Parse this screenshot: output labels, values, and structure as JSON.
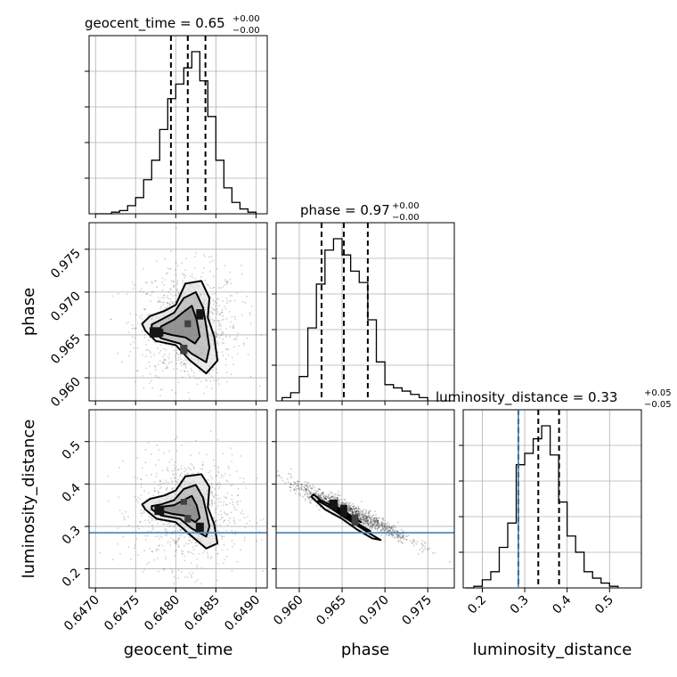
{
  "chart_data": {
    "type": "corner",
    "parameters": [
      "geocent_time",
      "phase",
      "luminosity_distance"
    ],
    "titles": [
      {
        "label": "geocent_time = 0.65",
        "upper": "+0.00",
        "lower": "−0.00"
      },
      {
        "label": "phase = 0.97",
        "upper": "+0.00",
        "lower": "−0.00"
      },
      {
        "label": "luminosity_distance = 0.33",
        "upper": "+0.05",
        "lower": "−0.05"
      }
    ],
    "axis_labels": {
      "x": [
        "geocent_time",
        "phase",
        "luminosity_distance"
      ],
      "y": [
        "phase",
        "luminosity_distance"
      ]
    },
    "ranges": {
      "geocent_time": [
        0.64692,
        0.64914
      ],
      "phase": [
        0.9573,
        0.9781
      ],
      "luminosity_distance": [
        0.155,
        0.575
      ]
    },
    "ticks": {
      "geocent_time": [
        "0.6470",
        "0.6475",
        "0.6480",
        "0.6485",
        "0.6490"
      ],
      "phase": [
        "0.960",
        "0.965",
        "0.970",
        "0.975"
      ],
      "luminosity_distance": [
        "0.2",
        "0.3",
        "0.4",
        "0.5"
      ]
    },
    "quantiles": {
      "geocent_time": [
        0.64794,
        0.64815,
        0.64837
      ],
      "phase": [
        0.9626,
        0.9652,
        0.968
      ],
      "luminosity_distance": [
        0.285,
        0.332,
        0.381
      ]
    },
    "truth": {
      "luminosity_distance": 0.285
    },
    "truth_color": "#4682b4",
    "histograms": {
      "geocent_time": {
        "bin_edges": [
          0.647,
          0.6471,
          0.6472,
          0.6473,
          0.6474,
          0.6475,
          0.6476,
          0.6477,
          0.6478,
          0.6479,
          0.648,
          0.6481,
          0.6482,
          0.6483,
          0.6484,
          0.6485,
          0.6486,
          0.6487,
          0.6488,
          0.6489,
          0.649
        ],
        "counts": [
          0.0,
          0.0,
          0.01,
          0.02,
          0.05,
          0.1,
          0.21,
          0.33,
          0.52,
          0.71,
          0.8,
          0.9,
          1.0,
          0.82,
          0.6,
          0.33,
          0.16,
          0.07,
          0.03,
          0.01
        ]
      },
      "phase": {
        "bin_edges": [
          0.958,
          0.959,
          0.96,
          0.961,
          0.962,
          0.963,
          0.964,
          0.965,
          0.966,
          0.967,
          0.968,
          0.969,
          0.97,
          0.971,
          0.972,
          0.973,
          0.974,
          0.975
        ],
        "counts": [
          0.02,
          0.05,
          0.15,
          0.45,
          0.72,
          0.93,
          1.0,
          0.9,
          0.8,
          0.73,
          0.5,
          0.24,
          0.1,
          0.08,
          0.06,
          0.04,
          0.02
        ]
      },
      "luminosity_distance": {
        "bin_edges": [
          0.16,
          0.18,
          0.2,
          0.22,
          0.24,
          0.26,
          0.28,
          0.3,
          0.32,
          0.34,
          0.36,
          0.38,
          0.4,
          0.42,
          0.44,
          0.46,
          0.48,
          0.5,
          0.52
        ],
        "counts": [
          0.0,
          0.01,
          0.05,
          0.1,
          0.25,
          0.4,
          0.76,
          0.83,
          0.92,
          1.0,
          0.82,
          0.53,
          0.32,
          0.22,
          0.1,
          0.06,
          0.03,
          0.01
        ]
      }
    },
    "density_blobs": {
      "phase_vs_geocent_time": [
        {
          "x": 0.647795,
          "y": 0.96525,
          "w": 0.0001,
          "h": 0.0009
        },
        {
          "x": 0.64815,
          "y": 0.9663,
          "w": 8e-05,
          "h": 0.0008
        },
        {
          "x": 0.6483,
          "y": 0.9674,
          "w": 9e-05,
          "h": 0.0012
        },
        {
          "x": 0.6481,
          "y": 0.9633,
          "w": 9e-05,
          "h": 0.0011
        },
        {
          "x": 0.64775,
          "y": 0.9653,
          "w": 0.00015,
          "h": 0.0012
        }
      ],
      "luminosity_distance_vs_geocent_time": [
        {
          "x": 0.647795,
          "y": 0.338,
          "w": 0.00012,
          "h": 0.022
        },
        {
          "x": 0.64815,
          "y": 0.318,
          "w": 8e-05,
          "h": 0.018
        },
        {
          "x": 0.6483,
          "y": 0.298,
          "w": 0.0001,
          "h": 0.022
        },
        {
          "x": 0.6481,
          "y": 0.358,
          "w": 8e-05,
          "h": 0.014
        }
      ],
      "luminosity_distance_vs_phase": [
        {
          "x": 0.9652,
          "y": 0.337,
          "w": 0.0008,
          "h": 0.028
        },
        {
          "x": 0.9665,
          "y": 0.315,
          "w": 0.0008,
          "h": 0.026
        },
        {
          "x": 0.964,
          "y": 0.352,
          "w": 0.001,
          "h": 0.022
        }
      ]
    },
    "contours": {
      "phase_vs_geocent_time": {
        "outer": [
          [
            0.64762,
            0.9655
          ],
          [
            0.64775,
            0.9643
          ],
          [
            0.648,
            0.9638
          ],
          [
            0.64818,
            0.962
          ],
          [
            0.64838,
            0.9605
          ],
          [
            0.64852,
            0.962
          ],
          [
            0.64848,
            0.9648
          ],
          [
            0.6484,
            0.967
          ],
          [
            0.64842,
            0.9693
          ],
          [
            0.64832,
            0.9713
          ],
          [
            0.64812,
            0.971
          ],
          [
            0.648,
            0.9685
          ],
          [
            0.64786,
            0.9678
          ],
          [
            0.64768,
            0.9672
          ],
          [
            0.64758,
            0.9663
          ]
        ],
        "middle": [
          [
            0.6477,
            0.9655
          ],
          [
            0.64782,
            0.9646
          ],
          [
            0.64805,
            0.964
          ],
          [
            0.6482,
            0.9628
          ],
          [
            0.64838,
            0.9618
          ],
          [
            0.64842,
            0.9635
          ],
          [
            0.64838,
            0.966
          ],
          [
            0.64834,
            0.9682
          ],
          [
            0.64825,
            0.97
          ],
          [
            0.6481,
            0.9693
          ],
          [
            0.64798,
            0.9676
          ],
          [
            0.64782,
            0.9668
          ],
          [
            0.6477,
            0.9662
          ]
        ],
        "inner": [
          [
            0.64778,
            0.9654
          ],
          [
            0.64795,
            0.965
          ],
          [
            0.64812,
            0.9647
          ],
          [
            0.64824,
            0.964
          ],
          [
            0.6483,
            0.9648
          ],
          [
            0.64826,
            0.9668
          ],
          [
            0.6482,
            0.9684
          ],
          [
            0.6481,
            0.9677
          ],
          [
            0.64798,
            0.9668
          ],
          [
            0.64782,
            0.966
          ]
        ]
      },
      "luminosity_distance_vs_geocent_time": {
        "outer": [
          [
            0.64762,
            0.34
          ],
          [
            0.64776,
            0.318
          ],
          [
            0.648,
            0.31
          ],
          [
            0.64818,
            0.28
          ],
          [
            0.64838,
            0.248
          ],
          [
            0.64852,
            0.26
          ],
          [
            0.64848,
            0.305
          ],
          [
            0.6484,
            0.345
          ],
          [
            0.64842,
            0.393
          ],
          [
            0.64832,
            0.423
          ],
          [
            0.64812,
            0.418
          ],
          [
            0.648,
            0.385
          ],
          [
            0.64786,
            0.373
          ],
          [
            0.64768,
            0.365
          ],
          [
            0.64758,
            0.352
          ]
        ],
        "middle": [
          [
            0.6477,
            0.34
          ],
          [
            0.64782,
            0.326
          ],
          [
            0.64805,
            0.318
          ],
          [
            0.6482,
            0.295
          ],
          [
            0.64838,
            0.276
          ],
          [
            0.64842,
            0.3
          ],
          [
            0.64838,
            0.335
          ],
          [
            0.64834,
            0.368
          ],
          [
            0.64825,
            0.398
          ],
          [
            0.6481,
            0.388
          ],
          [
            0.64798,
            0.362
          ],
          [
            0.64782,
            0.352
          ],
          [
            0.6477,
            0.348
          ]
        ],
        "inner": [
          [
            0.64778,
            0.338
          ],
          [
            0.64795,
            0.33
          ],
          [
            0.64812,
            0.325
          ],
          [
            0.64824,
            0.31
          ],
          [
            0.6483,
            0.32
          ],
          [
            0.64826,
            0.35
          ],
          [
            0.6482,
            0.372
          ],
          [
            0.6481,
            0.362
          ],
          [
            0.64798,
            0.35
          ],
          [
            0.64782,
            0.346
          ]
        ]
      },
      "luminosity_distance_vs_phase": {
        "outer": [
          [
            0.9614,
            0.37
          ],
          [
            0.963,
            0.34
          ],
          [
            0.965,
            0.318
          ],
          [
            0.9668,
            0.292
          ],
          [
            0.9685,
            0.272
          ],
          [
            0.9695,
            0.268
          ],
          [
            0.9685,
            0.28
          ],
          [
            0.9668,
            0.302
          ],
          [
            0.965,
            0.325
          ],
          [
            0.9632,
            0.35
          ],
          [
            0.9617,
            0.375
          ]
        ],
        "middle": [
          [
            0.9622,
            0.36
          ],
          [
            0.964,
            0.34
          ],
          [
            0.966,
            0.315
          ],
          [
            0.9676,
            0.292
          ],
          [
            0.9683,
            0.289
          ],
          [
            0.9672,
            0.302
          ],
          [
            0.9655,
            0.325
          ],
          [
            0.9637,
            0.35
          ],
          [
            0.9625,
            0.362
          ]
        ],
        "inner": [
          [
            0.9635,
            0.35
          ],
          [
            0.965,
            0.335
          ],
          [
            0.9665,
            0.316
          ],
          [
            0.9672,
            0.31
          ],
          [
            0.966,
            0.325
          ],
          [
            0.9645,
            0.345
          ],
          [
            0.9637,
            0.352
          ]
        ]
      }
    },
    "scatter": {
      "phase_vs_geocent_time": {
        "center": [
          0.64815,
          0.966
        ],
        "spread": [
          0.00033,
          0.0035
        ]
      },
      "luminosity_distance_vs_geocent_time": {
        "center": [
          0.64815,
          0.335
        ],
        "spread": [
          0.00033,
          0.065
        ]
      },
      "luminosity_distance_vs_phase": {
        "anchor": [
          0.966,
          0.335
        ],
        "slope": -9.4,
        "spread_x": 0.0035,
        "width": 0.01
      }
    },
    "grid": true,
    "legend": "none"
  }
}
